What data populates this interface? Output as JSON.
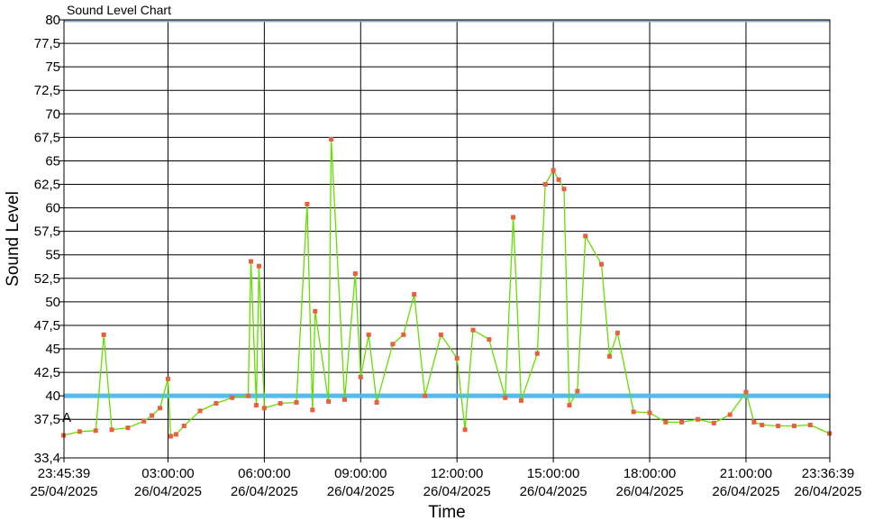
{
  "chart_data": {
    "type": "line",
    "title": "Sound Level Chart",
    "xlabel": "Time",
    "ylabel": "Sound Level",
    "ylim": [
      33.4,
      80
    ],
    "yticks": [
      "80",
      "77,5",
      "75",
      "72,5",
      "70",
      "67,5",
      "65",
      "62,5",
      "60",
      "57,5",
      "55",
      "52,5",
      "50",
      "47,5",
      "45",
      "42,5",
      "40",
      "37,5",
      "33,4"
    ],
    "xticks": [
      {
        "time": "23:45:39",
        "date": "25/04/2025"
      },
      {
        "time": "03:00:00",
        "date": "26/04/2025"
      },
      {
        "time": "06:00:00",
        "date": "26/04/2025"
      },
      {
        "time": "09:00:00",
        "date": "26/04/2025"
      },
      {
        "time": "12:00:00",
        "date": "26/04/2025"
      },
      {
        "time": "15:00:00",
        "date": "26/04/2025"
      },
      {
        "time": "18:00:00",
        "date": "26/04/2025"
      },
      {
        "time": "21:00:00",
        "date": "26/04/2025"
      },
      {
        "time": "23:36:39",
        "date": "26/04/2025"
      }
    ],
    "threshold": 40,
    "limit_line": 80,
    "marker_label": "A",
    "marker_value": 37.5,
    "grid": true,
    "colors": {
      "line": "#66dd00",
      "points": "#e8603c",
      "threshold": "#55bbee",
      "limit": "#8ea8c8"
    },
    "series": [
      {
        "x": [
          "23:45",
          "00:15",
          "00:45",
          "01:00",
          "01:15",
          "01:45",
          "02:15",
          "02:30",
          "02:45",
          "03:00",
          "03:05",
          "03:15",
          "03:30",
          "04:00",
          "04:30",
          "05:00",
          "05:30",
          "05:35",
          "05:45",
          "05:50",
          "06:00",
          "06:30",
          "07:00",
          "07:20",
          "07:30",
          "07:35",
          "08:00",
          "08:05",
          "08:30",
          "08:50",
          "09:00",
          "09:15",
          "09:30",
          "10:00",
          "10:20",
          "10:40",
          "11:00",
          "11:30",
          "12:00",
          "12:15",
          "12:30",
          "13:00",
          "13:30",
          "13:45",
          "14:00",
          "14:30",
          "14:45",
          "15:00",
          "15:10",
          "15:20",
          "15:30",
          "15:45",
          "16:00",
          "16:30",
          "16:45",
          "17:00",
          "17:30",
          "18:00",
          "18:30",
          "19:00",
          "19:30",
          "20:00",
          "20:30",
          "21:00",
          "21:15",
          "21:30",
          "22:00",
          "22:30",
          "23:00",
          "23:36"
        ],
        "y": [
          35.8,
          36.2,
          36.3,
          46.5,
          36.4,
          36.6,
          37.3,
          37.9,
          38.7,
          41.8,
          35.7,
          35.9,
          36.8,
          38.4,
          39.2,
          39.8,
          40.0,
          54.3,
          39.0,
          53.8,
          38.7,
          39.2,
          39.3,
          60.4,
          38.5,
          49.0,
          39.4,
          67.3,
          39.6,
          53.0,
          42.0,
          46.5,
          39.3,
          45.5,
          46.5,
          50.8,
          40.0,
          46.5,
          44.0,
          36.4,
          47.0,
          46.0,
          39.8,
          59.0,
          39.5,
          44.5,
          62.5,
          64.0,
          63.0,
          62.0,
          39.0,
          40.5,
          57.0,
          54.0,
          44.2,
          46.7,
          38.3,
          38.2,
          37.2,
          37.2,
          37.5,
          37.1,
          38.0,
          40.4,
          37.2,
          36.9,
          36.8,
          36.8,
          36.9,
          36.0
        ]
      }
    ]
  }
}
